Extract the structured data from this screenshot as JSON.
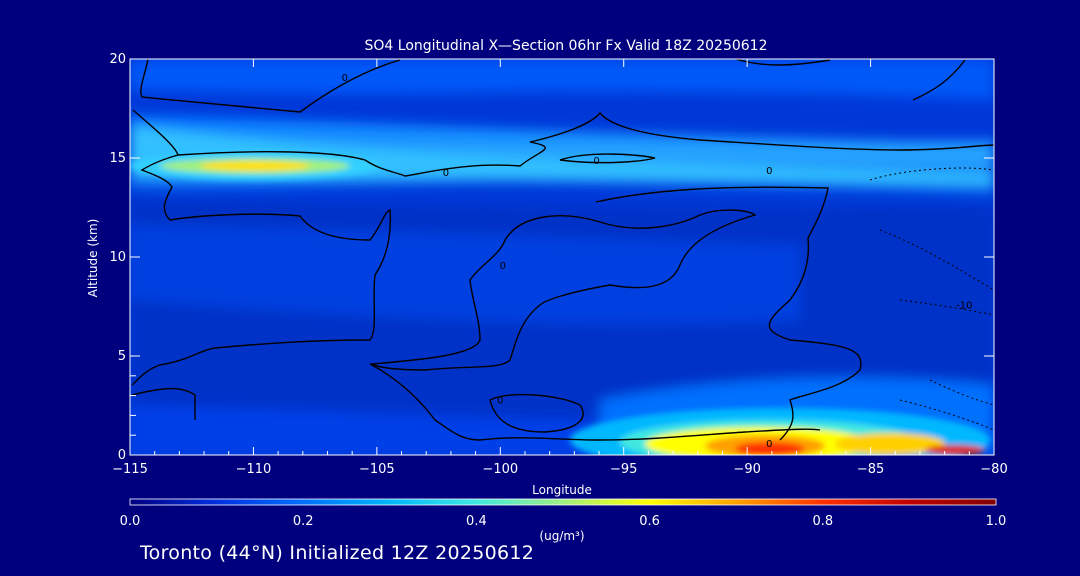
{
  "chart_data": {
    "type": "heatmap",
    "title": "SO4 Longitudinal X—Section 06hr  Fx Valid 18Z 20250612",
    "xlabel": "Longitude",
    "ylabel": "Altitude (km)",
    "xlim": [
      -115,
      -80
    ],
    "ylim": [
      0,
      20
    ],
    "xticks": [
      -115,
      -110,
      -105,
      -100,
      -95,
      -90,
      -85,
      -80
    ],
    "xtick_labels": [
      "−115",
      "−110",
      "−105",
      "−100",
      "−95",
      "−90",
      "−85",
      "−80"
    ],
    "yticks": [
      0,
      5,
      10,
      15,
      20
    ],
    "ytick_labels": [
      "0",
      "5",
      "10",
      "15",
      "20"
    ],
    "colorbar": {
      "min": 0.0,
      "max": 1.0,
      "ticks": [
        0.0,
        0.2,
        0.4,
        0.6,
        0.8,
        1.0
      ],
      "tick_labels": [
        "0.0",
        "0.2",
        "0.4",
        "0.6",
        "0.8",
        "1.0"
      ],
      "unit_label": "(ug/m³)",
      "colors": [
        "#000080",
        "#0030e0",
        "#0070ff",
        "#00b8ff",
        "#40e8e0",
        "#a0f080",
        "#ffff00",
        "#ffa000",
        "#ff3000",
        "#c00000",
        "#800000"
      ]
    },
    "features": [
      {
        "lon": -109,
        "alt": 14.4,
        "value": 0.55,
        "desc": "upper band maximum"
      },
      {
        "lon": -89,
        "alt": 0.5,
        "value": 0.85,
        "desc": "surface maximum"
      },
      {
        "lon": -115,
        "alt": 16,
        "value": 0.35,
        "desc": "upper band west edge"
      },
      {
        "lon": -85,
        "alt": 1.0,
        "value": 0.6,
        "desc": "surface secondary"
      }
    ],
    "contour_labels": [
      {
        "text": "0",
        "lon": -106.3,
        "alt": 19.1
      },
      {
        "text": "0",
        "lon": -102.2,
        "alt": 14.3
      },
      {
        "text": "0",
        "lon": -96.1,
        "alt": 14.9
      },
      {
        "text": "0",
        "lon": -89.1,
        "alt": 14.4
      },
      {
        "text": "0",
        "lon": -99.9,
        "alt": 9.6
      },
      {
        "text": "0",
        "lon": -100,
        "alt": 2.8
      },
      {
        "text": "0",
        "lon": -89.1,
        "alt": 0.6
      },
      {
        "text": "-10",
        "lon": -81.2,
        "alt": 7.6
      }
    ]
  },
  "footer": {
    "text": "Toronto (44°N) Initialized 12Z 20250612"
  }
}
